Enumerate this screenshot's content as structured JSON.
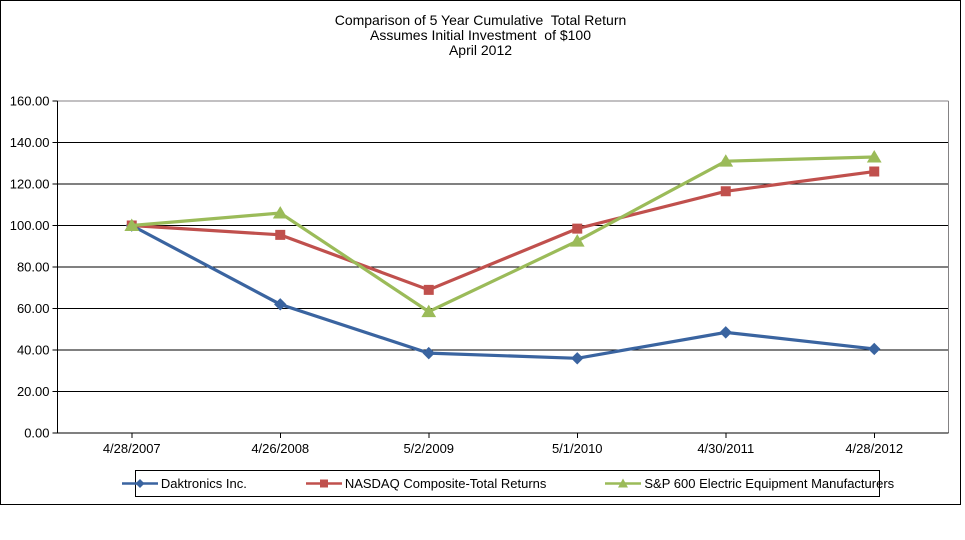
{
  "title": {
    "line1": "Comparison of 5 Year Cumulative  Total Return",
    "line2": "Assumes Initial Investment  of $100",
    "line3": "April 2012"
  },
  "chart_data": {
    "type": "line",
    "title": "Comparison of 5 Year Cumulative Total Return",
    "subtitle": "Assumes Initial Investment of $100",
    "date_note": "April 2012",
    "categories": [
      "4/28/2007",
      "4/26/2008",
      "5/2/2009",
      "5/1/2010",
      "4/30/2011",
      "4/28/2012"
    ],
    "series": [
      {
        "name": "Daktronics Inc.",
        "marker": "diamond",
        "color": "#3A64A0",
        "values": [
          100.0,
          62.0,
          38.5,
          36.0,
          48.5,
          40.5
        ]
      },
      {
        "name": "NASDAQ Composite-Total Returns",
        "marker": "square",
        "color": "#C0504D",
        "values": [
          100.0,
          95.5,
          69.0,
          98.5,
          116.5,
          126.0
        ]
      },
      {
        "name": "S&P 600 Electric Equipment Manufacturers",
        "marker": "triangle",
        "color": "#9BBB59",
        "values": [
          100.0,
          106.0,
          58.5,
          92.5,
          131.0,
          133.0
        ]
      }
    ],
    "xlabel": "",
    "ylabel": "",
    "ylim": [
      0,
      160
    ],
    "ytick_step": 20,
    "ytick_labels": [
      "0.00",
      "20.00",
      "40.00",
      "60.00",
      "80.00",
      "100.00",
      "120.00",
      "140.00",
      "160.00"
    ],
    "grid": "horizontal",
    "legend_position": "bottom",
    "axis_color": "#000000",
    "gridline_color": "#000000",
    "plot_border_color": "#848284"
  }
}
